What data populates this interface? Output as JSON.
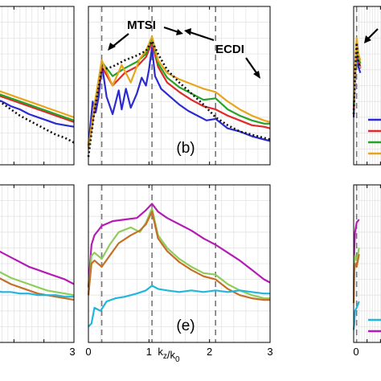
{
  "chart_data": [
    {
      "type": "line",
      "panel": "top-left",
      "xlim": [
        0,
        3
      ],
      "ylim": [
        0,
        1
      ],
      "grid": true,
      "series": [
        {
          "color": "#2b2bd0",
          "x": [
            0,
            0.3,
            0.6,
            0.9,
            1.2,
            1.5,
            1.8,
            2.1,
            2.4,
            2.7,
            3.0
          ],
          "values": [
            0.45,
            0.42,
            0.4,
            0.37,
            0.35,
            0.32,
            0.3,
            0.28,
            0.26,
            0.25,
            0.24
          ]
        },
        {
          "color": "#e02a2a",
          "x": [
            0,
            0.3,
            0.6,
            0.9,
            1.2,
            1.5,
            1.8,
            2.1,
            2.4,
            2.7,
            3.0
          ],
          "values": [
            0.47,
            0.45,
            0.43,
            0.41,
            0.39,
            0.37,
            0.35,
            0.33,
            0.31,
            0.29,
            0.27
          ]
        },
        {
          "color": "#27a327",
          "x": [
            0,
            0.3,
            0.6,
            0.9,
            1.2,
            1.5,
            1.8,
            2.1,
            2.4,
            2.7,
            3.0
          ],
          "values": [
            0.48,
            0.46,
            0.44,
            0.42,
            0.4,
            0.38,
            0.36,
            0.34,
            0.32,
            0.3,
            0.28
          ]
        },
        {
          "color": "#e8a51c",
          "x": [
            0,
            0.3,
            0.6,
            0.9,
            1.2,
            1.5,
            1.8,
            2.1,
            2.4,
            2.7,
            3.0
          ],
          "values": [
            0.5,
            0.48,
            0.46,
            0.44,
            0.42,
            0.4,
            0.38,
            0.36,
            0.34,
            0.32,
            0.3
          ]
        },
        {
          "color": "#111111",
          "dashed": true,
          "x": [
            0,
            0.3,
            0.6,
            0.9,
            1.2,
            1.5,
            1.8,
            2.1,
            2.4,
            2.7,
            3.0
          ],
          "values": [
            0.44,
            0.42,
            0.39,
            0.35,
            0.31,
            0.28,
            0.25,
            0.22,
            0.19,
            0.17,
            0.14
          ]
        }
      ]
    },
    {
      "type": "line",
      "panel": "top-middle",
      "label": "(b)",
      "xlim": [
        0,
        3
      ],
      "ylim": [
        0,
        1
      ],
      "grid": true,
      "vlines": [
        0.22,
        1.05,
        2.1
      ],
      "annotations": [
        {
          "text": "MTSI",
          "x": 0.22,
          "y": 0.66
        },
        {
          "text": "ECDI",
          "x": 2.05,
          "y": 0.53
        }
      ],
      "series": [
        {
          "color": "#2b2bd0",
          "x": [
            0,
            0.07,
            0.12,
            0.17,
            0.22,
            0.3,
            0.4,
            0.5,
            0.55,
            0.62,
            0.7,
            0.8,
            0.88,
            0.95,
            1.0,
            1.05,
            1.1,
            1.2,
            1.35,
            1.5,
            1.65,
            1.8,
            1.95,
            2.1,
            2.3,
            2.5,
            2.7,
            2.9,
            3.0
          ],
          "values": [
            0.12,
            0.4,
            0.33,
            0.43,
            0.64,
            0.43,
            0.32,
            0.47,
            0.35,
            0.48,
            0.36,
            0.45,
            0.55,
            0.5,
            0.6,
            0.74,
            0.56,
            0.48,
            0.43,
            0.38,
            0.34,
            0.31,
            0.28,
            0.29,
            0.23,
            0.21,
            0.18,
            0.16,
            0.15
          ]
        },
        {
          "color": "#e02a2a",
          "x": [
            0,
            0.1,
            0.22,
            0.4,
            0.6,
            0.8,
            0.95,
            1.05,
            1.15,
            1.3,
            1.5,
            1.7,
            1.9,
            2.1,
            2.3,
            2.5,
            2.7,
            2.9,
            3.0
          ],
          "values": [
            0.1,
            0.35,
            0.62,
            0.5,
            0.58,
            0.62,
            0.68,
            0.77,
            0.62,
            0.52,
            0.46,
            0.41,
            0.37,
            0.35,
            0.31,
            0.28,
            0.25,
            0.24,
            0.23
          ]
        },
        {
          "color": "#27a327",
          "x": [
            0,
            0.1,
            0.22,
            0.4,
            0.6,
            0.8,
            0.95,
            1.05,
            1.15,
            1.3,
            1.5,
            1.7,
            1.9,
            2.1,
            2.3,
            2.5,
            2.7,
            2.9,
            3.0
          ],
          "values": [
            0.1,
            0.37,
            0.65,
            0.56,
            0.61,
            0.65,
            0.7,
            0.8,
            0.64,
            0.55,
            0.49,
            0.45,
            0.41,
            0.42,
            0.35,
            0.31,
            0.28,
            0.26,
            0.26
          ]
        },
        {
          "color": "#e8a51c",
          "x": [
            0,
            0.1,
            0.22,
            0.4,
            0.55,
            0.7,
            0.85,
            0.95,
            1.05,
            1.15,
            1.3,
            1.5,
            1.7,
            1.9,
            2.1,
            2.3,
            2.5,
            2.7,
            2.9,
            3.0
          ],
          "values": [
            0.1,
            0.38,
            0.66,
            0.5,
            0.63,
            0.52,
            0.67,
            0.72,
            0.81,
            0.66,
            0.58,
            0.54,
            0.51,
            0.48,
            0.46,
            0.4,
            0.35,
            0.31,
            0.28,
            0.27
          ]
        },
        {
          "color": "#111111",
          "dashed": true,
          "x": [
            0,
            0.1,
            0.22,
            0.4,
            0.6,
            0.8,
            0.95,
            1.05,
            1.15,
            1.3,
            1.5,
            1.7,
            1.9,
            2.1,
            2.3,
            2.5,
            2.7,
            2.9,
            3.0
          ],
          "values": [
            0.05,
            0.34,
            0.6,
            0.62,
            0.66,
            0.69,
            0.72,
            0.78,
            0.7,
            0.6,
            0.52,
            0.45,
            0.38,
            0.3,
            0.25,
            0.21,
            0.19,
            0.17,
            0.16
          ]
        }
      ]
    },
    {
      "type": "line",
      "panel": "top-right",
      "xlim": [
        0,
        3
      ],
      "ylim": [
        0,
        1
      ],
      "grid": true,
      "vlines": [
        0.22
      ],
      "series": [
        {
          "color": "#2b2bd0",
          "x": [
            0,
            0.1,
            0.22,
            0.35,
            0.5
          ],
          "values": [
            0.3,
            0.55,
            0.75,
            0.62,
            0.58
          ]
        },
        {
          "color": "#e02a2a",
          "x": [
            0,
            0.1,
            0.22,
            0.35,
            0.5
          ],
          "values": [
            0.35,
            0.58,
            0.78,
            0.66,
            0.62
          ]
        },
        {
          "color": "#27a327",
          "x": [
            0,
            0.1,
            0.22,
            0.35,
            0.5
          ],
          "values": [
            0.38,
            0.6,
            0.79,
            0.68,
            0.64
          ]
        },
        {
          "color": "#e8a51c",
          "x": [
            0,
            0.1,
            0.22,
            0.35,
            0.5
          ],
          "values": [
            0.4,
            0.62,
            0.8,
            0.7,
            0.66
          ]
        },
        {
          "color": "#111111",
          "dashed": true,
          "x": [
            0,
            0.1,
            0.22,
            0.35,
            0.5
          ],
          "values": [
            0.32,
            0.57,
            0.77,
            0.65,
            0.61
          ]
        }
      ],
      "legend_colors": [
        "#2b2bd0",
        "#e02a2a",
        "#27a327",
        "#e8a51c"
      ]
    },
    {
      "type": "line",
      "panel": "bottom-left",
      "xlim": [
        0,
        3
      ],
      "ylim": [
        0,
        1
      ],
      "grid": true,
      "xticks": [
        "3"
      ],
      "series": [
        {
          "color": "#b41cb4",
          "x": [
            0,
            0.3,
            0.6,
            0.9,
            1.2,
            1.5,
            1.8,
            2.1,
            2.4,
            2.7,
            3.0
          ],
          "values": [
            0.62,
            0.6,
            0.57,
            0.54,
            0.51,
            0.48,
            0.46,
            0.44,
            0.42,
            0.4,
            0.37
          ]
        },
        {
          "color": "#8fcc5c",
          "x": [
            0,
            0.3,
            0.6,
            0.9,
            1.2,
            1.5,
            1.8,
            2.1,
            2.4,
            2.7,
            3.0
          ],
          "values": [
            0.5,
            0.47,
            0.44,
            0.41,
            0.39,
            0.37,
            0.35,
            0.33,
            0.32,
            0.31,
            0.3
          ]
        },
        {
          "color": "#c47026",
          "x": [
            0,
            0.3,
            0.6,
            0.9,
            1.2,
            1.5,
            1.8,
            2.1,
            2.4,
            2.7,
            3.0
          ],
          "values": [
            0.46,
            0.43,
            0.4,
            0.37,
            0.35,
            0.33,
            0.31,
            0.3,
            0.29,
            0.28,
            0.27
          ]
        },
        {
          "color": "#22b5de",
          "x": [
            0,
            0.3,
            0.6,
            0.9,
            1.2,
            1.5,
            1.8,
            2.1,
            2.4,
            2.7,
            3.0
          ],
          "values": [
            0.33,
            0.33,
            0.32,
            0.32,
            0.31,
            0.31,
            0.3,
            0.3,
            0.3,
            0.29,
            0.29
          ]
        }
      ]
    },
    {
      "type": "line",
      "panel": "bottom-middle",
      "label": "(e)",
      "xlim": [
        0,
        3
      ],
      "ylim": [
        0,
        1
      ],
      "grid": true,
      "xlabel": "k_z/k_0",
      "xticks": [
        "0",
        "1",
        "2",
        "3"
      ],
      "vlines": [
        0.22,
        1.05,
        2.1
      ],
      "series": [
        {
          "color": "#b41cb4",
          "x": [
            0,
            0.05,
            0.1,
            0.22,
            0.4,
            0.6,
            0.8,
            0.95,
            1.05,
            1.15,
            1.3,
            1.5,
            1.7,
            1.9,
            2.1,
            2.3,
            2.5,
            2.7,
            2.9,
            3.0
          ],
          "values": [
            0.35,
            0.62,
            0.68,
            0.74,
            0.77,
            0.78,
            0.79,
            0.84,
            0.88,
            0.83,
            0.79,
            0.75,
            0.71,
            0.66,
            0.62,
            0.57,
            0.52,
            0.46,
            0.4,
            0.38
          ]
        },
        {
          "color": "#8fcc5c",
          "x": [
            0,
            0.05,
            0.1,
            0.22,
            0.35,
            0.5,
            0.7,
            0.85,
            0.95,
            1.05,
            1.15,
            1.3,
            1.5,
            1.7,
            1.9,
            2.1,
            2.3,
            2.5,
            2.7,
            2.9,
            3.0
          ],
          "values": [
            0.3,
            0.55,
            0.57,
            0.53,
            0.62,
            0.7,
            0.73,
            0.7,
            0.76,
            0.85,
            0.68,
            0.6,
            0.53,
            0.48,
            0.44,
            0.43,
            0.37,
            0.33,
            0.3,
            0.28,
            0.28
          ]
        },
        {
          "color": "#c47026",
          "x": [
            0,
            0.05,
            0.1,
            0.22,
            0.35,
            0.5,
            0.7,
            0.85,
            0.95,
            1.05,
            1.15,
            1.3,
            1.5,
            1.7,
            1.9,
            2.1,
            2.3,
            2.5,
            2.7,
            2.9,
            3.0
          ],
          "values": [
            0.3,
            0.5,
            0.52,
            0.48,
            0.55,
            0.63,
            0.68,
            0.71,
            0.75,
            0.83,
            0.66,
            0.58,
            0.51,
            0.46,
            0.42,
            0.4,
            0.34,
            0.3,
            0.28,
            0.27,
            0.27
          ]
        },
        {
          "color": "#22b5de",
          "x": [
            0,
            0.05,
            0.1,
            0.2,
            0.3,
            0.45,
            0.6,
            0.8,
            0.95,
            1.05,
            1.15,
            1.3,
            1.5,
            1.7,
            1.9,
            2.1,
            2.3,
            2.5,
            2.7,
            2.9,
            3.0
          ],
          "values": [
            0.1,
            0.12,
            0.22,
            0.2,
            0.26,
            0.28,
            0.29,
            0.31,
            0.33,
            0.36,
            0.34,
            0.33,
            0.32,
            0.33,
            0.32,
            0.33,
            0.32,
            0.33,
            0.32,
            0.31,
            0.31
          ]
        }
      ]
    },
    {
      "type": "line",
      "panel": "bottom-right",
      "xlim": [
        0,
        3
      ],
      "ylim": [
        0,
        1
      ],
      "grid": true,
      "xticks": [
        "0"
      ],
      "vlines": [
        0.22
      ],
      "series": [
        {
          "color": "#b41cb4",
          "x": [
            0,
            0.05,
            0.1,
            0.22,
            0.4
          ],
          "values": [
            0.3,
            0.6,
            0.7,
            0.76,
            0.78
          ]
        },
        {
          "color": "#8fcc5c",
          "x": [
            0,
            0.05,
            0.1,
            0.22,
            0.4
          ],
          "values": [
            0.25,
            0.5,
            0.55,
            0.52,
            0.6
          ]
        },
        {
          "color": "#c47026",
          "x": [
            0,
            0.05,
            0.1,
            0.22,
            0.4
          ],
          "values": [
            0.25,
            0.45,
            0.5,
            0.48,
            0.56
          ]
        },
        {
          "color": "#22b5de",
          "x": [
            0,
            0.05,
            0.1,
            0.22,
            0.4
          ],
          "values": [
            0.08,
            0.12,
            0.2,
            0.22,
            0.26
          ]
        }
      ],
      "legend_colors": [
        "#22b5de",
        "#b41cb4"
      ]
    }
  ]
}
